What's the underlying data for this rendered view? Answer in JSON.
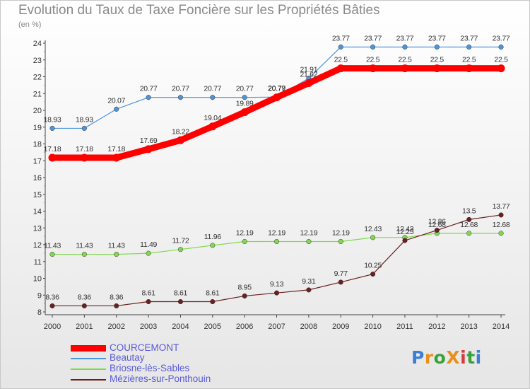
{
  "title": "Evolution du Taux de Taxe Foncière sur les Propriétés Bâties",
  "unit": "(en %)",
  "logo": "ProXiti",
  "colors": {
    "COURCEMONT": "#ff0000",
    "Beautay": "#4d94d9",
    "Briosne-lès-Sables": "#80d94d",
    "Mézières-sur-Ponthouin": "#6b1f1f"
  },
  "chart_data": {
    "type": "line",
    "title": "Evolution du Taux de Taxe Foncière sur les Propriétés Bâties",
    "ylabel": "(en %)",
    "xlabel": "",
    "x": [
      "2000",
      "2001",
      "2002",
      "2003",
      "2004",
      "2005",
      "2006",
      "2007",
      "2008",
      "2009",
      "2010",
      "2011",
      "2012",
      "2013",
      "2014"
    ],
    "ylim": [
      8,
      24
    ],
    "yticks": [
      8,
      9,
      10,
      11,
      12,
      13,
      14,
      15,
      16,
      17,
      18,
      19,
      20,
      21,
      22,
      23,
      24
    ],
    "grid": false,
    "legend": "bottom-left",
    "series": [
      {
        "name": "COURCEMONT",
        "values": [
          17.18,
          17.18,
          17.18,
          17.69,
          18.22,
          19.04,
          19.89,
          20.77,
          21.62,
          22.5,
          22.5,
          22.5,
          22.5,
          22.5,
          22.5
        ],
        "labels": [
          "17.18",
          "17.18",
          "17.18",
          "17.69",
          "18.22",
          "19.04",
          "19.89",
          "20.77",
          "21.62",
          "22.5",
          "22.5",
          "22.5",
          "22.5",
          "22.5",
          "22.5"
        ]
      },
      {
        "name": "Beautay",
        "values": [
          18.93,
          18.93,
          20.07,
          20.77,
          20.77,
          20.77,
          20.77,
          20.79,
          21.91,
          23.77,
          23.77,
          23.77,
          23.77,
          23.77,
          23.77
        ],
        "labels": [
          "18.93",
          "18.93",
          "20.07",
          "20.77",
          "20.77",
          "20.77",
          "20.77",
          "20.79",
          "21.91",
          "23.77",
          "23.77",
          "23.77",
          "23.77",
          "23.77",
          "23.77"
        ]
      },
      {
        "name": "Briosne-lès-Sables",
        "values": [
          11.43,
          11.43,
          11.43,
          11.49,
          11.72,
          11.96,
          12.19,
          12.19,
          12.19,
          12.19,
          12.43,
          12.43,
          12.68,
          12.68,
          12.68
        ],
        "labels": [
          "11.43",
          "11.43",
          "11.43",
          "11.49",
          "11.72",
          "11.96",
          "12.19",
          "12.19",
          "12.19",
          "12.19",
          "12.43",
          "12.43",
          "12.68",
          "12.68",
          "12.68"
        ]
      },
      {
        "name": "Mézières-sur-Ponthouin",
        "values": [
          8.36,
          8.36,
          8.36,
          8.61,
          8.61,
          8.61,
          8.95,
          9.13,
          9.31,
          9.77,
          10.25,
          12.25,
          12.86,
          13.5,
          13.77
        ],
        "labels": [
          "8.36",
          "8.36",
          "8.36",
          "8.61",
          "8.61",
          "8.61",
          "8.95",
          "9.13",
          "9.31",
          "9.77",
          "10.25",
          "12.25",
          "12.86",
          "13.5",
          "13.77"
        ]
      }
    ]
  }
}
